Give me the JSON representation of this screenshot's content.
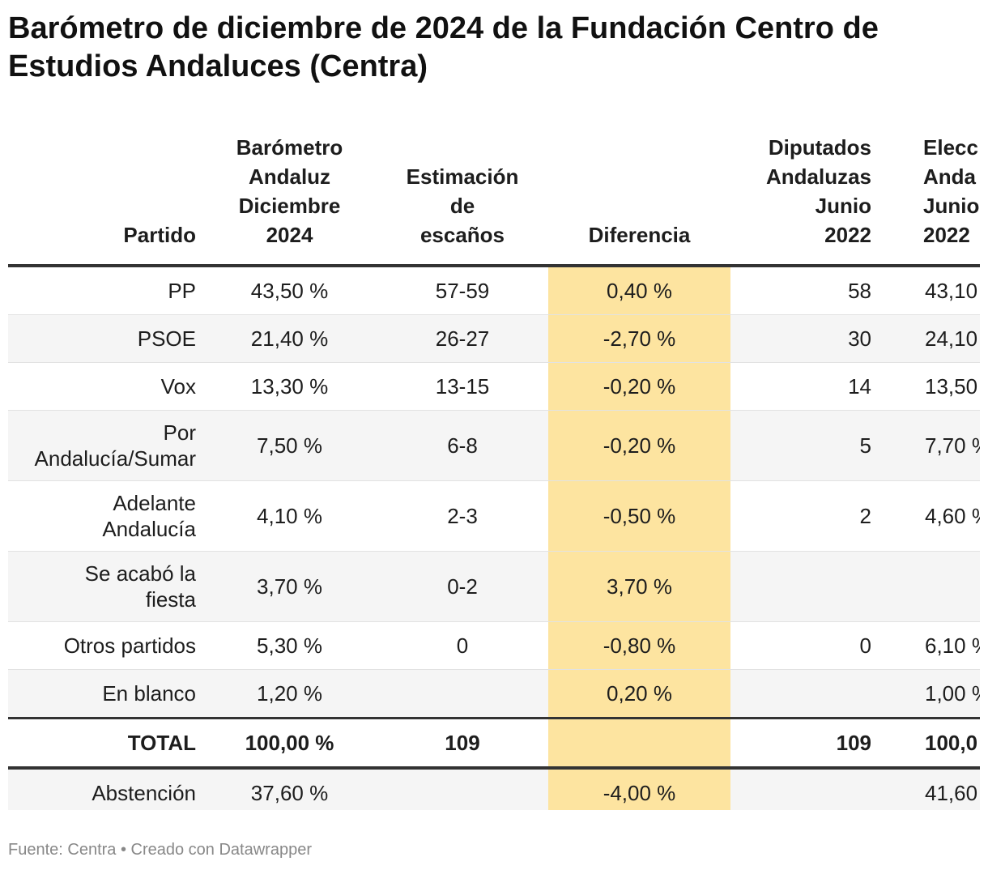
{
  "title": "Barómetro de diciembre de 2024 de la Fundación Centro de Estudios Andaluces (Centra)",
  "headers": {
    "partido": "Partido",
    "barometro": [
      "Barómetro",
      "Andaluz",
      "Diciembre",
      "2024"
    ],
    "estimacion": [
      "Estimación",
      "de",
      "escaños"
    ],
    "diferencia": "Diferencia",
    "diputados": [
      "Diputados",
      "Andaluzas",
      "Junio",
      "2022"
    ],
    "elecciones": [
      "Elecc",
      "Anda",
      "Junio",
      "2022"
    ]
  },
  "rows": [
    {
      "partido": "PP",
      "barometro": "43,50 %",
      "escanos": "57-59",
      "diferencia": "0,40 %",
      "diputados": "58",
      "elecciones": "43,10"
    },
    {
      "partido": "PSOE",
      "barometro": "21,40 %",
      "escanos": "26-27",
      "diferencia": "-2,70 %",
      "diputados": "30",
      "elecciones": "24,10"
    },
    {
      "partido": "Vox",
      "barometro": "13,30 %",
      "escanos": "13-15",
      "diferencia": "-0,20 %",
      "diputados": "14",
      "elecciones": "13,50"
    },
    {
      "partido": [
        "Por",
        "Andalucía/Sumar"
      ],
      "barometro": "7,50 %",
      "escanos": "6-8",
      "diferencia": "-0,20 %",
      "diputados": "5",
      "elecciones": "7,70 %"
    },
    {
      "partido": [
        "Adelante",
        "Andalucía"
      ],
      "barometro": "4,10 %",
      "escanos": "2-3",
      "diferencia": "-0,50 %",
      "diputados": "2",
      "elecciones": "4,60 %"
    },
    {
      "partido": [
        "Se acabó la",
        "fiesta"
      ],
      "barometro": "3,70 %",
      "escanos": "0-2",
      "diferencia": "3,70 %",
      "diputados": "",
      "elecciones": ""
    },
    {
      "partido": "Otros partidos",
      "barometro": "5,30 %",
      "escanos": "0",
      "diferencia": "-0,80 %",
      "diputados": "0",
      "elecciones": "6,10 %"
    },
    {
      "partido": "En blanco",
      "barometro": "1,20 %",
      "escanos": "",
      "diferencia": "0,20 %",
      "diputados": "",
      "elecciones": "1,00 %"
    }
  ],
  "total": {
    "partido": "TOTAL",
    "barometro": "100,00 %",
    "escanos": "109",
    "diferencia": "",
    "diputados": "109",
    "elecciones": "100,0"
  },
  "abstencion": {
    "partido": "Abstención",
    "barometro": "37,60 %",
    "escanos": "",
    "diferencia": "-4,00 %",
    "diputados": "",
    "elecciones": "41,60"
  },
  "footer": "Fuente: Centra • Creado con Datawrapper",
  "colors": {
    "highlight": "#fde4a0",
    "stripe": "#f5f5f5",
    "rule": "#333333"
  }
}
